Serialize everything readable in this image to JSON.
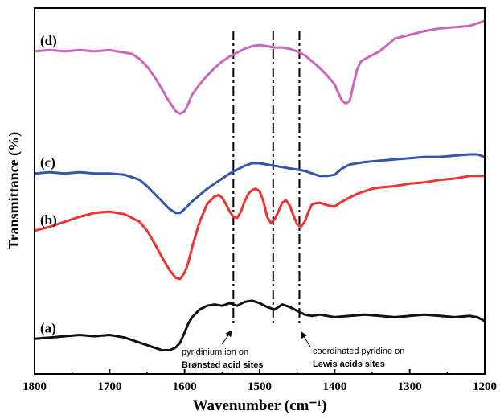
{
  "chart_data": {
    "type": "line",
    "title": "",
    "xlabel": "Wavenumber (cm⁻¹)",
    "ylabel": "Transmittance (%)",
    "xlim": [
      1800,
      1200
    ],
    "x_reversed": true,
    "x_ticks": [
      "1800",
      "1700",
      "1600",
      "1500",
      "1400",
      "1300",
      "1200"
    ],
    "y_ticks_shown": false,
    "series": [
      {
        "name": "(d)",
        "color": "#cc66bb",
        "x": [
          1800,
          1780,
          1760,
          1740,
          1720,
          1700,
          1690,
          1680,
          1670,
          1660,
          1650,
          1640,
          1630,
          1620,
          1612,
          1606,
          1600,
          1595,
          1590,
          1580,
          1570,
          1560,
          1550,
          1540,
          1530,
          1520,
          1510,
          1500,
          1490,
          1480,
          1470,
          1460,
          1450,
          1440,
          1430,
          1420,
          1410,
          1400,
          1395,
          1390,
          1385,
          1380,
          1375,
          1370,
          1365,
          1360,
          1350,
          1340,
          1330,
          1320,
          1300,
          1280,
          1260,
          1240,
          1220,
          1210,
          1200
        ],
        "y": [
          0.96,
          0.97,
          0.96,
          0.97,
          0.96,
          0.97,
          0.96,
          0.95,
          0.94,
          0.9,
          0.84,
          0.76,
          0.66,
          0.56,
          0.49,
          0.47,
          0.49,
          0.55,
          0.62,
          0.7,
          0.77,
          0.83,
          0.88,
          0.92,
          0.95,
          0.98,
          1.0,
          1.01,
          1.0,
          0.99,
          0.99,
          0.98,
          0.96,
          0.93,
          0.88,
          0.83,
          0.77,
          0.7,
          0.63,
          0.57,
          0.55,
          0.57,
          0.7,
          0.82,
          0.88,
          0.9,
          0.93,
          0.96,
          1.01,
          1.06,
          1.09,
          1.12,
          1.14,
          1.15,
          1.16,
          1.18,
          1.2
        ]
      },
      {
        "name": "(c)",
        "color": "#3355aa",
        "x": [
          1800,
          1780,
          1760,
          1740,
          1720,
          1700,
          1680,
          1660,
          1650,
          1640,
          1630,
          1620,
          1612,
          1606,
          1600,
          1590,
          1580,
          1570,
          1560,
          1550,
          1540,
          1530,
          1520,
          1510,
          1500,
          1490,
          1480,
          1470,
          1460,
          1450,
          1440,
          1430,
          1420,
          1410,
          1400,
          1390,
          1380,
          1370,
          1360,
          1340,
          1320,
          1300,
          1280,
          1260,
          1240,
          1220,
          1210,
          1200
        ],
        "y": [
          0.0,
          0.01,
          0.0,
          0.01,
          0.0,
          0.0,
          -0.01,
          -0.05,
          -0.1,
          -0.16,
          -0.22,
          -0.28,
          -0.31,
          -0.31,
          -0.28,
          -0.22,
          -0.17,
          -0.12,
          -0.08,
          -0.04,
          0.0,
          0.03,
          0.06,
          0.08,
          0.08,
          0.07,
          0.06,
          0.05,
          0.04,
          0.03,
          0.02,
          0.0,
          -0.02,
          -0.02,
          -0.01,
          0.04,
          0.07,
          0.08,
          0.09,
          0.1,
          0.11,
          0.12,
          0.13,
          0.13,
          0.14,
          0.15,
          0.15,
          0.13
        ]
      },
      {
        "name": "(b)",
        "color": "#ee3333",
        "x": [
          1800,
          1780,
          1760,
          1740,
          1720,
          1700,
          1680,
          1660,
          1650,
          1640,
          1630,
          1620,
          1612,
          1606,
          1600,
          1595,
          1590,
          1580,
          1570,
          1560,
          1555,
          1550,
          1545,
          1540,
          1535,
          1530,
          1525,
          1520,
          1515,
          1510,
          1505,
          1500,
          1495,
          1490,
          1485,
          1480,
          1475,
          1470,
          1465,
          1460,
          1455,
          1450,
          1445,
          1440,
          1435,
          1430,
          1420,
          1410,
          1400,
          1390,
          1380,
          1370,
          1360,
          1350,
          1340,
          1320,
          1300,
          1280,
          1260,
          1240,
          1220,
          1210,
          1200
        ],
        "y": [
          -0.45,
          -0.42,
          -0.38,
          -0.34,
          -0.31,
          -0.3,
          -0.32,
          -0.38,
          -0.45,
          -0.55,
          -0.66,
          -0.76,
          -0.82,
          -0.83,
          -0.78,
          -0.7,
          -0.58,
          -0.38,
          -0.24,
          -0.18,
          -0.17,
          -0.19,
          -0.24,
          -0.3,
          -0.34,
          -0.35,
          -0.3,
          -0.22,
          -0.16,
          -0.13,
          -0.12,
          -0.14,
          -0.22,
          -0.34,
          -0.39,
          -0.36,
          -0.3,
          -0.23,
          -0.21,
          -0.25,
          -0.33,
          -0.4,
          -0.42,
          -0.38,
          -0.3,
          -0.24,
          -0.23,
          -0.25,
          -0.26,
          -0.22,
          -0.19,
          -0.16,
          -0.14,
          -0.12,
          -0.11,
          -0.1,
          -0.08,
          -0.07,
          -0.05,
          -0.04,
          -0.02,
          -0.02,
          -0.02
        ]
      },
      {
        "name": "(a)",
        "color": "#111111",
        "x": [
          1800,
          1780,
          1760,
          1740,
          1720,
          1700,
          1680,
          1660,
          1640,
          1630,
          1620,
          1612,
          1606,
          1600,
          1595,
          1590,
          1580,
          1570,
          1560,
          1550,
          1540,
          1530,
          1520,
          1510,
          1500,
          1490,
          1480,
          1470,
          1460,
          1450,
          1440,
          1430,
          1420,
          1410,
          1400,
          1380,
          1360,
          1340,
          1320,
          1300,
          1280,
          1260,
          1240,
          1220,
          1210,
          1200
        ],
        "y": [
          -1.3,
          -1.29,
          -1.28,
          -1.27,
          -1.28,
          -1.27,
          -1.29,
          -1.33,
          -1.37,
          -1.39,
          -1.39,
          -1.37,
          -1.33,
          -1.25,
          -1.18,
          -1.13,
          -1.07,
          -1.04,
          -1.03,
          -1.04,
          -1.02,
          -1.04,
          -1.01,
          -1.0,
          -1.02,
          -1.05,
          -1.07,
          -1.03,
          -1.05,
          -1.08,
          -1.11,
          -1.12,
          -1.11,
          -1.12,
          -1.13,
          -1.12,
          -1.11,
          -1.12,
          -1.13,
          -1.12,
          -1.11,
          -1.12,
          -1.13,
          -1.12,
          -1.13,
          -1.16
        ]
      }
    ],
    "reference_lines": [
      {
        "x": 1535,
        "style": "dash-dot"
      },
      {
        "x": 1482,
        "style": "dash-dot"
      },
      {
        "x": 1447,
        "style": "dash-dot"
      }
    ],
    "annotations": [
      {
        "lines": [
          "pyridinium ion on",
          "Brønsted acid sites"
        ],
        "arrow_target_x": 1535
      },
      {
        "lines": [
          "coordinated pyridine on",
          "Lewis acids sites"
        ],
        "arrow_target_x": 1447
      }
    ]
  }
}
